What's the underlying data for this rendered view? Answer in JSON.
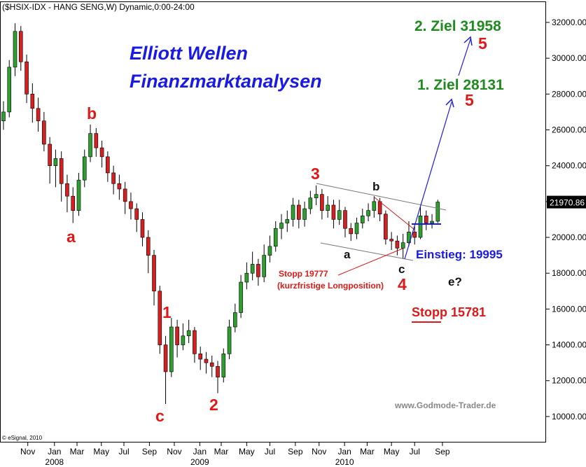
{
  "chart_data": {
    "type": "candlestick",
    "title": "($HSIX-IDX - HANG SENG,W) Dynamic,0:00-24:00",
    "source": "© eSignal, 2010",
    "watermark": "www.Godmode-Trader.de",
    "up_color": "#2e9e2e",
    "down_color": "#d42020",
    "ylim": [
      8550,
      33250
    ],
    "xlim": [
      -0.6,
      93.7
    ],
    "yticks": [
      {
        "value": 10000,
        "label": "10000.00"
      },
      {
        "value": 12000,
        "label": "12000.00"
      },
      {
        "value": 14000,
        "label": "14000.00"
      },
      {
        "value": 16000,
        "label": "16000.00"
      },
      {
        "value": 18000,
        "label": "18000.00"
      },
      {
        "value": 20000,
        "label": "20000.00"
      },
      {
        "value": 22000,
        "label": "22000.00"
      },
      {
        "value": 24000,
        "label": "24000.00"
      },
      {
        "value": 26000,
        "label": "26000.00"
      },
      {
        "value": 28000,
        "label": "28000.00"
      },
      {
        "value": 30000,
        "label": "30000.00"
      },
      {
        "value": 32000,
        "label": "32000.00"
      }
    ],
    "xticks": [
      {
        "value": 4.2,
        "label": "Nov"
      },
      {
        "value": 8.8,
        "label": "Jan"
      },
      {
        "value": 12.7,
        "label": "Mar"
      },
      {
        "value": 16.9,
        "label": "May"
      },
      {
        "value": 20.8,
        "label": "Jul"
      },
      {
        "value": 25.2,
        "label": "Sep"
      },
      {
        "value": 29.5,
        "label": "Nov"
      },
      {
        "value": 33.9,
        "label": "Jan"
      },
      {
        "value": 37.6,
        "label": "Mar"
      },
      {
        "value": 42,
        "label": "May"
      },
      {
        "value": 46,
        "label": "Jul"
      },
      {
        "value": 50.4,
        "label": "Sep"
      },
      {
        "value": 54.5,
        "label": "Nov"
      },
      {
        "value": 58.9,
        "label": "Jan"
      },
      {
        "value": 62.8,
        "label": "Mar"
      },
      {
        "value": 67,
        "label": "May"
      },
      {
        "value": 71,
        "label": "Jul"
      },
      {
        "value": 75.8,
        "label": "Sep"
      }
    ],
    "year_labels": [
      {
        "value": 8.8,
        "label": "2008"
      },
      {
        "value": 33.9,
        "label": "2009"
      },
      {
        "value": 58.9,
        "label": "2010"
      }
    ],
    "last_price": 21970.86,
    "candles": [
      [
        26500,
        27600,
        26000,
        27000
      ],
      [
        27000,
        29900,
        26700,
        29500
      ],
      [
        29500,
        31950,
        29000,
        31500
      ],
      [
        31500,
        31800,
        29300,
        29800
      ],
      [
        29800,
        30200,
        27500,
        28000
      ],
      [
        28000,
        28600,
        26400,
        27200
      ],
      [
        27200,
        27800,
        25900,
        26500
      ],
      [
        26500,
        27000,
        24800,
        25200
      ],
      [
        25200,
        25600,
        23000,
        24000
      ],
      [
        24000,
        24900,
        22800,
        24400
      ],
      [
        24400,
        24800,
        22000,
        23000
      ],
      [
        23000,
        23500,
        21400,
        22300
      ],
      [
        22300,
        22800,
        20800,
        21500
      ],
      [
        21500,
        23600,
        21200,
        23200
      ],
      [
        23200,
        24900,
        22800,
        24500
      ],
      [
        24500,
        26300,
        24200,
        25800
      ],
      [
        25800,
        26100,
        24500,
        25000
      ],
      [
        25000,
        25400,
        23900,
        24500
      ],
      [
        24500,
        24800,
        23100,
        23600
      ],
      [
        23600,
        24000,
        22400,
        23000
      ],
      [
        23000,
        23500,
        22100,
        22700
      ],
      [
        22700,
        23100,
        21300,
        22000
      ],
      [
        22000,
        22500,
        21000,
        21600
      ],
      [
        21600,
        21900,
        20300,
        21000
      ],
      [
        21000,
        21400,
        19500,
        20000
      ],
      [
        20000,
        20400,
        18000,
        19000
      ],
      [
        19000,
        19300,
        16200,
        17000
      ],
      [
        17000,
        17300,
        13500,
        14000
      ],
      [
        14000,
        14500,
        10700,
        12500
      ],
      [
        12500,
        15500,
        12200,
        15000
      ],
      [
        15000,
        15400,
        13300,
        14000
      ],
      [
        14000,
        15200,
        13700,
        14500
      ],
      [
        14500,
        15400,
        14100,
        14800
      ],
      [
        14800,
        15000,
        13000,
        13500
      ],
      [
        13500,
        13900,
        12600,
        13200
      ],
      [
        13200,
        13600,
        12400,
        13000
      ],
      [
        13000,
        13400,
        12200,
        12800
      ],
      [
        12800,
        13100,
        11300,
        12200
      ],
      [
        12200,
        13800,
        11900,
        13500
      ],
      [
        13500,
        15400,
        13200,
        15000
      ],
      [
        15000,
        16300,
        14700,
        15800
      ],
      [
        15800,
        17900,
        15500,
        17500
      ],
      [
        17500,
        18600,
        17100,
        18000
      ],
      [
        18000,
        19200,
        17600,
        18500
      ],
      [
        18500,
        18800,
        17300,
        17800
      ],
      [
        17800,
        19600,
        17500,
        19000
      ],
      [
        19000,
        20100,
        18600,
        19500
      ],
      [
        19500,
        20900,
        19200,
        20500
      ],
      [
        20500,
        21300,
        19900,
        20800
      ],
      [
        20800,
        21500,
        20300,
        21000
      ],
      [
        21000,
        22200,
        20600,
        21800
      ],
      [
        21800,
        22100,
        20500,
        21000
      ],
      [
        21000,
        22000,
        20600,
        21600
      ],
      [
        21600,
        22600,
        21300,
        22200
      ],
      [
        22200,
        22900,
        21800,
        22400
      ],
      [
        22400,
        22700,
        21000,
        21500
      ],
      [
        21500,
        22300,
        21100,
        21800
      ],
      [
        21800,
        22100,
        20500,
        21000
      ],
      [
        21000,
        22100,
        20700,
        21500
      ],
      [
        21500,
        21700,
        20000,
        20500
      ],
      [
        20500,
        20800,
        19800,
        20200
      ],
      [
        20200,
        21100,
        19900,
        20800
      ],
      [
        20800,
        21600,
        20500,
        21200
      ],
      [
        21200,
        21900,
        20900,
        21500
      ],
      [
        21500,
        22300,
        21100,
        22000
      ],
      [
        22000,
        22200,
        20900,
        21300
      ],
      [
        21300,
        21500,
        19600,
        19900
      ],
      [
        19900,
        20300,
        19300,
        19800
      ],
      [
        19800,
        20100,
        19000,
        19400
      ],
      [
        19400,
        20200,
        18800,
        19700
      ],
      [
        19700,
        20900,
        19500,
        20300
      ],
      [
        20300,
        20600,
        19600,
        20000
      ],
      [
        20000,
        21700,
        19900,
        21200
      ],
      [
        21200,
        21500,
        20400,
        20800
      ],
      [
        20800,
        21300,
        20500,
        20900
      ],
      [
        20900,
        22100,
        20800,
        21970.86
      ]
    ],
    "annotations": [
      "Elliott Wellen",
      "Finanzmarktanalysen",
      "2. Ziel 31958",
      "5",
      "1. Ziel 28131",
      "5",
      "b",
      "a",
      "c",
      "1",
      "2",
      "3",
      "4",
      "b",
      "a",
      "c",
      "e?",
      "Einstieg: 19995",
      "Stopp 19777",
      "(kurzfristige Longposition)",
      "Stopp 15781"
    ]
  }
}
